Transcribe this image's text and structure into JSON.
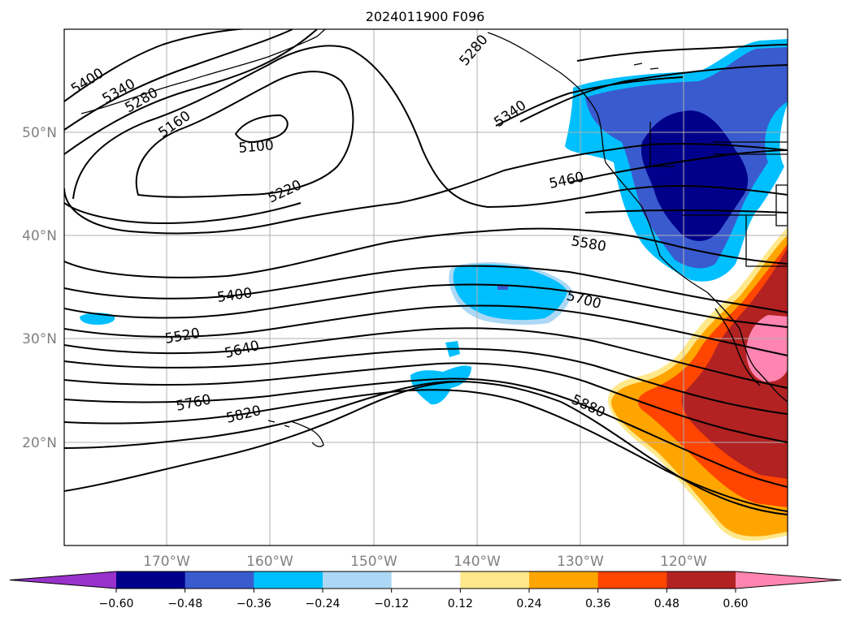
{
  "title": "2024011900 F096",
  "lat_labels": [
    "50°N",
    "40°N",
    "30°N",
    "20°N"
  ],
  "lon_labels": [
    "170°W",
    "160°W",
    "150°W",
    "140°W",
    "130°W",
    "120°W"
  ],
  "contour_labels": [
    "5400",
    "5340",
    "5280",
    "5160",
    "5100",
    "5220",
    "5280",
    "5340",
    "5460",
    "5580",
    "5400",
    "5520",
    "5640",
    "5700",
    "5760",
    "5820",
    "5880"
  ],
  "colorbar": {
    "ticks": [
      "−0.60",
      "−0.48",
      "−0.36",
      "−0.24",
      "−0.12",
      "0.12",
      "0.24",
      "0.36",
      "0.48",
      "0.60"
    ],
    "colors": [
      "#9932cc",
      "#00008b",
      "#3a5bcf",
      "#00bfff",
      "#add8f5",
      "#ffffff",
      "#ffe88a",
      "#ffa500",
      "#ff4500",
      "#b22222",
      "#ff85b0"
    ]
  }
}
